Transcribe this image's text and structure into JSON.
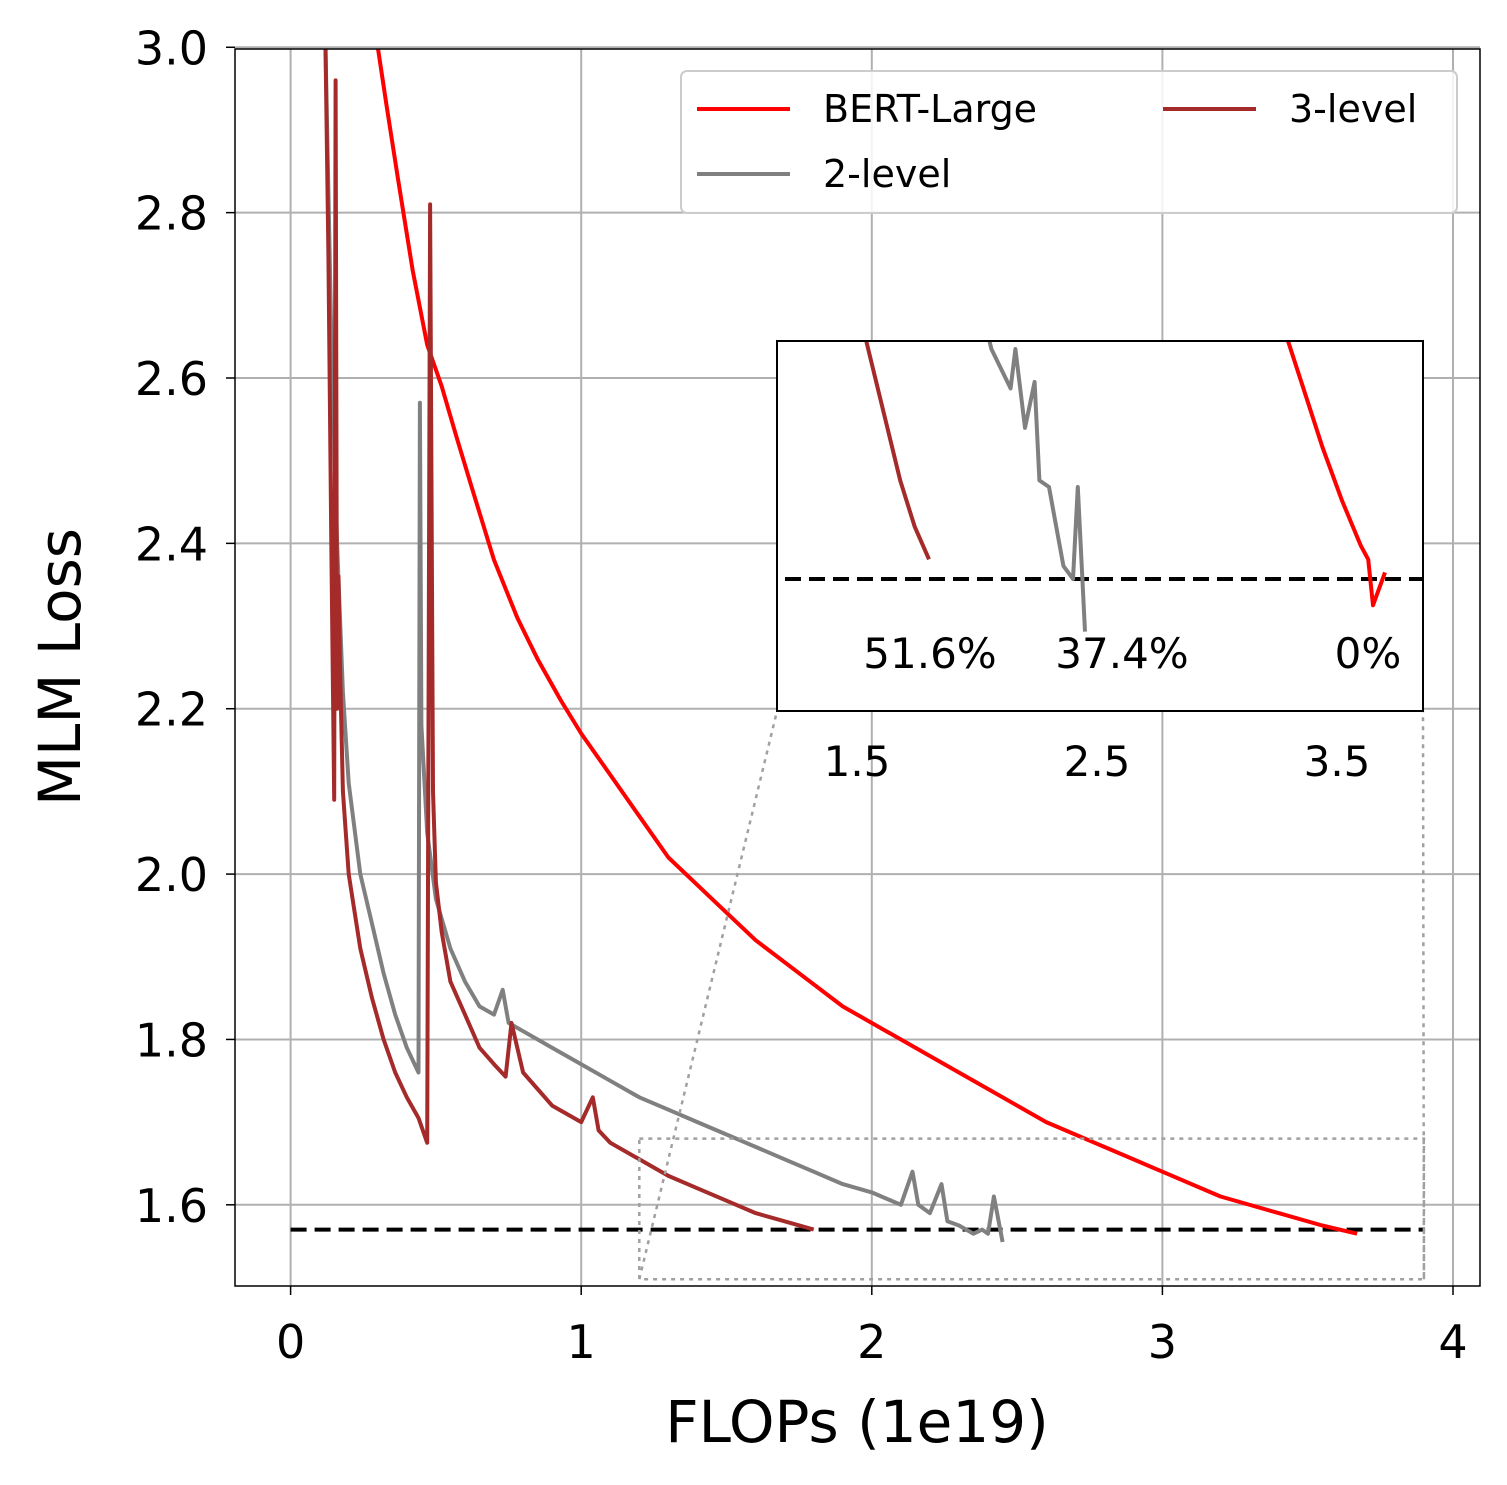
{
  "chart_data": [
    {
      "type": "line",
      "xlabel": "FLOPs (1e19)",
      "ylabel": "MLM Loss",
      "xlim": [
        -0.2,
        4.1
      ],
      "ylim": [
        1.5,
        3.0
      ],
      "xticks": [
        "0",
        "1",
        "2",
        "3",
        "4"
      ],
      "yticks": [
        "1.6",
        "1.8",
        "2.0",
        "2.2",
        "2.4",
        "2.6",
        "2.8",
        "3.0"
      ],
      "grid": true,
      "legend_placement": "top-right",
      "target_loss": 1.57,
      "series": [
        {
          "name": "BERT-Large",
          "color": "#ff0000",
          "x": [
            0.3,
            0.33,
            0.37,
            0.42,
            0.47,
            0.52,
            0.57,
            0.63,
            0.7,
            0.78,
            0.85,
            0.93,
            1.0,
            1.1,
            1.2,
            1.3,
            1.45,
            1.6,
            1.75,
            1.9,
            2.05,
            2.2,
            2.4,
            2.6,
            2.8,
            3.0,
            3.2,
            3.4,
            3.55,
            3.67
          ],
          "y": [
            3.0,
            2.93,
            2.84,
            2.73,
            2.64,
            2.59,
            2.53,
            2.46,
            2.38,
            2.31,
            2.26,
            2.21,
            2.17,
            2.12,
            2.07,
            2.02,
            1.97,
            1.92,
            1.88,
            1.84,
            1.81,
            1.78,
            1.74,
            1.7,
            1.67,
            1.64,
            1.61,
            1.59,
            1.575,
            1.565
          ]
        },
        {
          "name": "2-level",
          "color": "#808080",
          "x": [
            0.12,
            0.14,
            0.16,
            0.18,
            0.2,
            0.24,
            0.28,
            0.32,
            0.36,
            0.4,
            0.44,
            0.445,
            0.45,
            0.47,
            0.5,
            0.55,
            0.6,
            0.65,
            0.7,
            0.73,
            0.75,
            0.8,
            0.9,
            1.0,
            1.1,
            1.2,
            1.3,
            1.4,
            1.5,
            1.6,
            1.7,
            1.8,
            1.9,
            2.0,
            2.1,
            2.14,
            2.16,
            2.2,
            2.24,
            2.26,
            2.3,
            2.35,
            2.38,
            2.4,
            2.42,
            2.45
          ],
          "y": [
            3.0,
            2.65,
            2.4,
            2.22,
            2.11,
            2.0,
            1.94,
            1.88,
            1.83,
            1.79,
            1.76,
            2.57,
            2.18,
            2.05,
            1.97,
            1.91,
            1.87,
            1.84,
            1.83,
            1.86,
            1.82,
            1.81,
            1.79,
            1.77,
            1.75,
            1.73,
            1.715,
            1.7,
            1.685,
            1.67,
            1.655,
            1.64,
            1.625,
            1.615,
            1.6,
            1.64,
            1.6,
            1.59,
            1.625,
            1.58,
            1.575,
            1.565,
            1.57,
            1.565,
            1.61,
            1.555
          ]
        },
        {
          "name": "3-level",
          "color": "#a52a2a",
          "x": [
            0.12,
            0.13,
            0.14,
            0.15,
            0.155,
            0.16,
            0.165,
            0.17,
            0.18,
            0.2,
            0.24,
            0.28,
            0.32,
            0.36,
            0.4,
            0.44,
            0.47,
            0.48,
            0.49,
            0.5,
            0.52,
            0.55,
            0.6,
            0.65,
            0.7,
            0.74,
            0.76,
            0.8,
            0.9,
            1.0,
            1.04,
            1.06,
            1.1,
            1.2,
            1.3,
            1.4,
            1.5,
            1.6,
            1.7,
            1.8
          ],
          "y": [
            3.0,
            2.75,
            2.4,
            2.09,
            2.96,
            2.2,
            2.36,
            2.25,
            2.1,
            2.0,
            1.91,
            1.85,
            1.8,
            1.76,
            1.73,
            1.705,
            1.675,
            2.81,
            2.1,
            1.99,
            1.93,
            1.87,
            1.83,
            1.79,
            1.77,
            1.755,
            1.82,
            1.76,
            1.72,
            1.7,
            1.73,
            1.69,
            1.675,
            1.655,
            1.635,
            1.62,
            1.605,
            1.59,
            1.58,
            1.57
          ]
        }
      ]
    },
    {
      "type": "line",
      "xticks": [
        "1.5",
        "2.5",
        "3.5"
      ],
      "annotations": [
        "51.6%",
        "37.4%",
        "0%"
      ],
      "series": [
        {
          "name": "BERT-Large",
          "color": "#ff0000",
          "x": [
            3.2,
            3.28,
            3.36,
            3.44,
            3.52,
            3.6,
            3.63,
            3.65,
            3.7
          ],
          "y": [
            1.618,
            1.608,
            1.599,
            1.59,
            1.582,
            1.575,
            1.573,
            1.566,
            1.571
          ]
        },
        {
          "name": "2-level",
          "color": "#808080",
          "x": [
            1.9,
            1.98,
            2.06,
            2.14,
            2.16,
            2.2,
            2.24,
            2.26,
            2.3,
            2.36,
            2.4,
            2.42,
            2.45
          ],
          "y": [
            1.627,
            1.617,
            1.605,
            1.599,
            1.605,
            1.593,
            1.6,
            1.585,
            1.584,
            1.572,
            1.57,
            1.584,
            1.562
          ]
        },
        {
          "name": "3-level",
          "color": "#a52a2a",
          "x": [
            1.5,
            1.56,
            1.62,
            1.68,
            1.74,
            1.8
          ],
          "y": [
            1.612,
            1.603,
            1.594,
            1.585,
            1.578,
            1.573
          ]
        }
      ]
    }
  ]
}
